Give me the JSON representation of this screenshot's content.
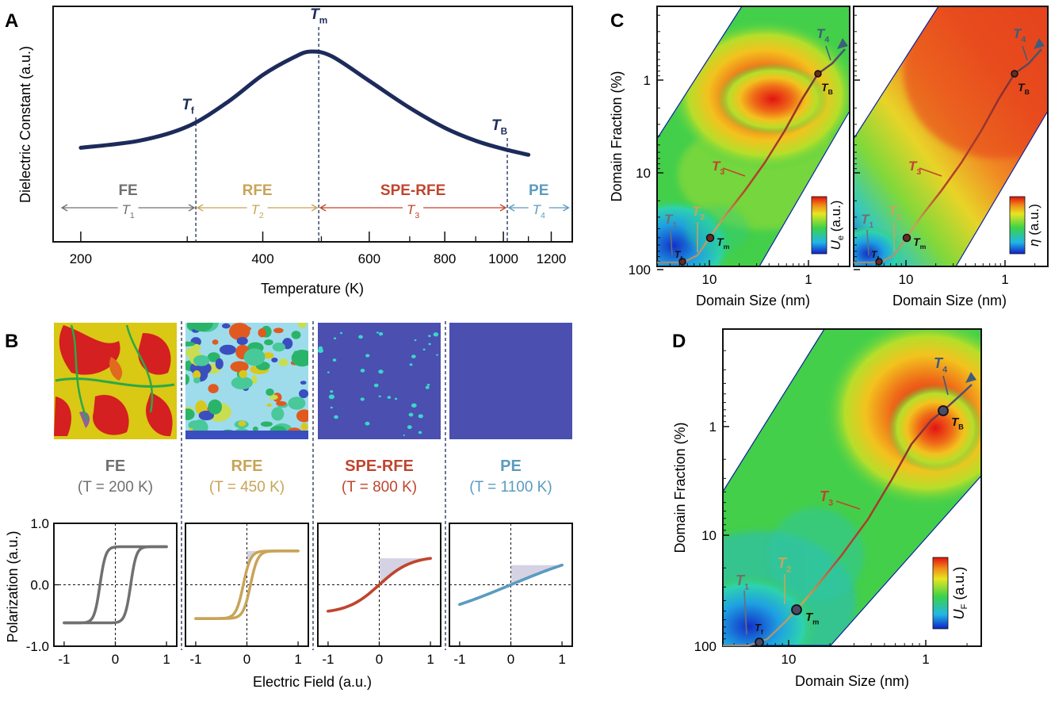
{
  "panel_labels": {
    "a": "A",
    "b": "B",
    "c": "C",
    "d": "D"
  },
  "colors": {
    "navy": "#1c2b5a",
    "fe": "#707070",
    "rfe": "#c8a458",
    "spe": "#c0452e",
    "pe": "#5b9bbf",
    "shade": "#cfcde0",
    "pe_fill": "#4a4fb0"
  },
  "chart_data": [
    {
      "id": "A",
      "type": "line",
      "title": "",
      "xlabel": "Temperature (K)",
      "ylabel": "Dielectric Constant (a.u.)",
      "x_ticks": [
        "200",
        "400",
        "600",
        "800",
        "1000",
        "1200"
      ],
      "x_range": [
        180,
        1300
      ],
      "x_scale": "log",
      "series": [
        {
          "name": "dielectric",
          "x": [
            200,
            250,
            300,
            350,
            400,
            450,
            480,
            520,
            600,
            700,
            800,
            900,
            1000,
            1100
          ],
          "y": [
            0.18,
            0.24,
            0.36,
            0.57,
            0.8,
            0.95,
            1.0,
            0.96,
            0.75,
            0.52,
            0.35,
            0.24,
            0.17,
            0.12
          ]
        }
      ],
      "markers": [
        {
          "label": "T",
          "sub": "f",
          "x": 310
        },
        {
          "label": "T",
          "sub": "m",
          "x": 495
        },
        {
          "label": "T",
          "sub": "B",
          "x": 1015
        }
      ],
      "phases": [
        {
          "name": "FE",
          "sub_label": "T",
          "sub": "1",
          "from": 185,
          "to": 310
        },
        {
          "name": "RFE",
          "sub_label": "T",
          "sub": "2",
          "from": 310,
          "to": 495
        },
        {
          "name": "SPE-RFE",
          "sub_label": "T",
          "sub": "3",
          "from": 495,
          "to": 1015
        },
        {
          "name": "PE",
          "sub_label": "T",
          "sub": "4",
          "from": 1015,
          "to": 1290
        }
      ]
    },
    {
      "id": "B",
      "type": "line",
      "xlabel": "Electric Field (a.u.)",
      "ylabel": "Polarization (a.u.)",
      "x_ticks": [
        "-1",
        "0",
        "1"
      ],
      "y_ticks": [
        "1.0",
        "0.0",
        "-1.0"
      ],
      "x_range": [
        -1.2,
        1.2
      ],
      "y_range": [
        -1,
        1
      ],
      "phases": [
        {
          "name": "FE",
          "temp_label": "(T = 200 K)",
          "p_max": 0.62,
          "coercive": 0.3,
          "steep": 9
        },
        {
          "name": "RFE",
          "temp_label": "(T = 450 K)",
          "p_max": 0.55,
          "coercive": 0.07,
          "steep": 7
        },
        {
          "name": "SPE-RFE",
          "temp_label": "(T = 800 K)",
          "p_max": 0.43,
          "coercive": 0.0,
          "steep": 1.6
        },
        {
          "name": "PE",
          "temp_label": "(T = 1100 K)",
          "p_max": 0.32,
          "coercive": 0.0,
          "steep": 0.5
        }
      ]
    },
    {
      "id": "C",
      "type": "heatmap",
      "xlabel": "Domain Size (nm)",
      "ylabel": "Domain Fraction (%)",
      "x_ticks": [
        "10",
        "1"
      ],
      "y_ticks": [
        "1",
        "10",
        "100"
      ],
      "maps": [
        {
          "colorbar_label": "U",
          "colorbar_sub": "e",
          "colorbar_unit": " (a.u.)"
        },
        {
          "colorbar_label": "η",
          "colorbar_sub": "",
          "colorbar_unit": " (a.u.)"
        }
      ],
      "path_labels": [
        {
          "label": "T",
          "sub": "1"
        },
        {
          "label": "T",
          "sub": "2"
        },
        {
          "label": "T",
          "sub": "3"
        },
        {
          "label": "T",
          "sub": "4"
        }
      ],
      "point_labels": [
        {
          "label": "T",
          "sub": "f"
        },
        {
          "label": "T",
          "sub": "m"
        },
        {
          "label": "T",
          "sub": "B"
        }
      ]
    },
    {
      "id": "D",
      "type": "heatmap",
      "xlabel": "Domain Size (nm)",
      "ylabel": "Domain Fraction (%)",
      "x_ticks": [
        "10",
        "1"
      ],
      "y_ticks": [
        "1",
        "10",
        "100"
      ],
      "colorbar_label": "U",
      "colorbar_sub": "F",
      "colorbar_unit": " (a.u.)"
    }
  ]
}
